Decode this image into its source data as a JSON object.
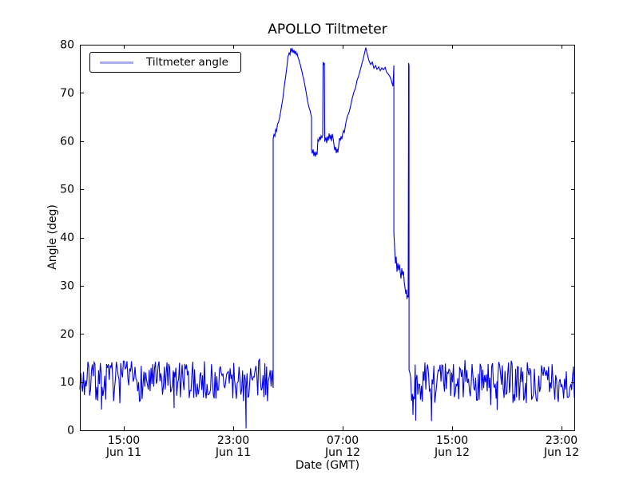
{
  "chart_data": {
    "type": "line",
    "title": "APOLLO Tiltmeter",
    "xlabel": "Date (GMT)",
    "ylabel": "Angle (deg)",
    "legend_label": "Tiltmeter angle",
    "legend_position": "upper left",
    "grid": false,
    "line_color": "#0000e8",
    "legend_sample_color": "#aaacf0",
    "ylim": [
      0,
      80
    ],
    "yticks": [
      0,
      10,
      20,
      30,
      40,
      50,
      60,
      70,
      80
    ],
    "x_span_hours": 36.2,
    "xticks": [
      {
        "t": 3.21,
        "time": "15:00",
        "date": "Jun 11"
      },
      {
        "t": 11.21,
        "time": "23:00",
        "date": "Jun 11"
      },
      {
        "t": 19.21,
        "time": "07:00",
        "date": "Jun 12"
      },
      {
        "t": 27.21,
        "time": "15:00",
        "date": "Jun 12"
      },
      {
        "t": 35.21,
        "time": "23:00",
        "date": "Jun 12"
      }
    ],
    "noise_segments": [
      {
        "t0": 0.0,
        "t1": 14.08,
        "mean": 10.2,
        "amp": 4.2,
        "step": 0.065,
        "spikes": [
          [
            1.58,
            4.3
          ],
          [
            6.89,
            4.6
          ],
          [
            12.15,
            0.4
          ]
        ]
      },
      {
        "t0": 24.12,
        "t1": 36.15,
        "mean": 9.9,
        "amp": 4.3,
        "step": 0.065,
        "spikes": [
          [
            24.35,
            3.2
          ],
          [
            24.55,
            2.0
          ],
          [
            25.7,
            1.9
          ],
          [
            30.5,
            4.2
          ]
        ]
      }
    ],
    "event_points": [
      [
        14.13,
        8.8
      ],
      [
        14.13,
        60.5
      ],
      [
        14.19,
        61.4
      ],
      [
        14.25,
        61.0
      ],
      [
        14.31,
        62.4
      ],
      [
        14.37,
        62.0
      ],
      [
        14.45,
        63.6
      ],
      [
        14.51,
        63.8
      ],
      [
        14.6,
        64.9
      ],
      [
        14.72,
        66.8
      ],
      [
        14.83,
        68.7
      ],
      [
        14.95,
        71.5
      ],
      [
        15.04,
        73.4
      ],
      [
        15.12,
        75.1
      ],
      [
        15.21,
        77.5
      ],
      [
        15.3,
        78.3
      ],
      [
        15.36,
        77.9
      ],
      [
        15.42,
        79.3
      ],
      [
        15.47,
        78.6
      ],
      [
        15.53,
        79.1
      ],
      [
        15.59,
        78.3
      ],
      [
        15.65,
        78.9
      ],
      [
        15.71,
        78.1
      ],
      [
        15.77,
        78.7
      ],
      [
        15.82,
        77.9
      ],
      [
        15.88,
        78.2
      ],
      [
        15.94,
        77.4
      ],
      [
        16.0,
        77.0
      ],
      [
        16.06,
        76.3
      ],
      [
        16.12,
        75.8
      ],
      [
        16.18,
        75.0
      ],
      [
        16.24,
        74.4
      ],
      [
        16.29,
        73.6
      ],
      [
        16.35,
        73.0
      ],
      [
        16.41,
        72.1
      ],
      [
        16.47,
        71.2
      ],
      [
        16.53,
        70.3
      ],
      [
        16.59,
        69.3
      ],
      [
        16.64,
        68.4
      ],
      [
        16.7,
        67.6
      ],
      [
        16.76,
        66.9
      ],
      [
        16.82,
        66.4
      ],
      [
        16.88,
        65.6
      ],
      [
        16.93,
        64.9
      ],
      [
        16.93,
        58.2
      ],
      [
        16.99,
        57.4
      ],
      [
        17.05,
        58.3
      ],
      [
        17.11,
        56.9
      ],
      [
        17.17,
        57.8
      ],
      [
        17.23,
        56.8
      ],
      [
        17.28,
        57.6
      ],
      [
        17.34,
        57.2
      ],
      [
        17.4,
        60.3
      ],
      [
        17.46,
        60.0
      ],
      [
        17.52,
        60.9
      ],
      [
        17.58,
        60.2
      ],
      [
        17.63,
        61.1
      ],
      [
        17.69,
        60.7
      ],
      [
        17.75,
        61.2
      ],
      [
        17.78,
        76.4
      ],
      [
        17.84,
        75.8
      ],
      [
        17.87,
        76.2
      ],
      [
        17.9,
        59.9
      ],
      [
        17.99,
        60.8
      ],
      [
        18.04,
        59.6
      ],
      [
        18.1,
        61.0
      ],
      [
        18.16,
        60.1
      ],
      [
        18.22,
        61.6
      ],
      [
        18.28,
        60.4
      ],
      [
        18.34,
        61.3
      ],
      [
        18.39,
        60.0
      ],
      [
        18.45,
        61.5
      ],
      [
        18.51,
        60.6
      ],
      [
        18.57,
        59.4
      ],
      [
        18.63,
        58.1
      ],
      [
        18.69,
        58.8
      ],
      [
        18.74,
        57.5
      ],
      [
        18.8,
        58.4
      ],
      [
        18.86,
        57.6
      ],
      [
        18.92,
        59.0
      ],
      [
        18.98,
        60.6
      ],
      [
        19.04,
        60.1
      ],
      [
        19.09,
        61.0
      ],
      [
        19.15,
        60.4
      ],
      [
        19.21,
        61.5
      ],
      [
        19.27,
        62.2
      ],
      [
        19.33,
        61.8
      ],
      [
        19.45,
        63.9
      ],
      [
        19.56,
        65.2
      ],
      [
        19.68,
        66.0
      ],
      [
        19.8,
        67.4
      ],
      [
        19.91,
        68.9
      ],
      [
        20.03,
        70.2
      ],
      [
        20.15,
        71.0
      ],
      [
        20.26,
        72.6
      ],
      [
        20.38,
        73.5
      ],
      [
        20.5,
        74.8
      ],
      [
        20.61,
        76.0
      ],
      [
        20.73,
        77.2
      ],
      [
        20.85,
        78.8
      ],
      [
        20.9,
        79.4
      ],
      [
        20.96,
        78.6
      ],
      [
        21.02,
        77.9
      ],
      [
        21.14,
        76.6
      ],
      [
        21.26,
        75.9
      ],
      [
        21.37,
        76.4
      ],
      [
        21.49,
        75.1
      ],
      [
        21.61,
        75.7
      ],
      [
        21.72,
        74.9
      ],
      [
        21.84,
        75.4
      ],
      [
        21.96,
        74.6
      ],
      [
        22.07,
        75.2
      ],
      [
        22.19,
        74.8
      ],
      [
        22.31,
        75.3
      ],
      [
        22.42,
        74.3
      ],
      [
        22.54,
        73.9
      ],
      [
        22.66,
        73.4
      ],
      [
        22.77,
        72.6
      ],
      [
        22.83,
        71.9
      ],
      [
        22.89,
        71.4
      ],
      [
        22.95,
        75.7
      ],
      [
        22.95,
        41.0
      ],
      [
        23.01,
        37.8
      ],
      [
        23.07,
        34.6
      ],
      [
        23.12,
        36.0
      ],
      [
        23.18,
        32.9
      ],
      [
        23.24,
        34.7
      ],
      [
        23.3,
        33.2
      ],
      [
        23.36,
        34.4
      ],
      [
        23.42,
        32.8
      ],
      [
        23.47,
        31.5
      ],
      [
        23.53,
        33.6
      ],
      [
        23.59,
        32.2
      ],
      [
        23.65,
        33.0
      ],
      [
        23.71,
        30.7
      ],
      [
        23.77,
        29.5
      ],
      [
        23.82,
        28.3
      ],
      [
        23.88,
        29.2
      ],
      [
        23.91,
        27.2
      ],
      [
        23.94,
        28.0
      ],
      [
        24.0,
        27.6
      ],
      [
        24.03,
        76.2
      ],
      [
        24.06,
        75.6
      ],
      [
        24.06,
        12.5
      ]
    ]
  }
}
